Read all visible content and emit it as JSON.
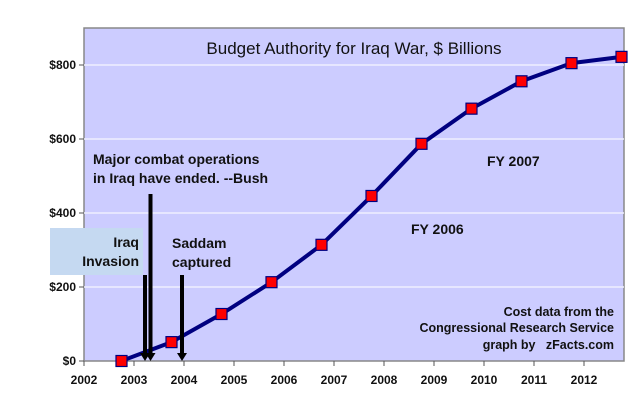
{
  "chart_data": {
    "type": "line",
    "title": "Budget Authority for Iraq War, $ Billions",
    "xlabel": "",
    "ylabel": "",
    "xlim": [
      2002,
      2012.8
    ],
    "ylim": [
      0,
      900
    ],
    "x_ticks": [
      "2002",
      "2003",
      "2004",
      "2005",
      "2006",
      "2007",
      "2008",
      "2009",
      "2010",
      "2011",
      "2012"
    ],
    "y_ticks": [
      "$0",
      "$200",
      "$400",
      "$600",
      "$800"
    ],
    "grid": "horizontal",
    "series": [
      {
        "x": [
          2002.75,
          2003.75,
          2004.75,
          2005.75,
          2006.75,
          2007.75,
          2008.75,
          2009.75,
          2010.75,
          2011.75,
          2012.75
        ],
        "values": [
          0,
          51,
          127,
          213,
          314,
          446,
          587,
          682,
          756,
          805,
          822
        ]
      }
    ],
    "annotations": {
      "bush": [
        "Major combat operations",
        "in Iraq have ended. --Bush"
      ],
      "invasion": [
        "Iraq",
        "Invasion"
      ],
      "saddam": [
        "Saddam",
        "captured"
      ],
      "fy2007": "FY 2007",
      "fy2006": "FY 2006",
      "source": [
        "Cost data from the",
        "Congressional Research Service",
        "graph by   zFacts.com"
      ]
    },
    "event_arrows": [
      {
        "label": "invasion",
        "x": 2003.22
      },
      {
        "label": "bush",
        "x": 2003.33
      },
      {
        "label": "saddam",
        "x": 2003.96
      }
    ],
    "colors": {
      "plot_bg": "#ccccff",
      "line": "#000080",
      "marker": "#ff0000",
      "invasion_box": "#c5d9f1"
    }
  }
}
